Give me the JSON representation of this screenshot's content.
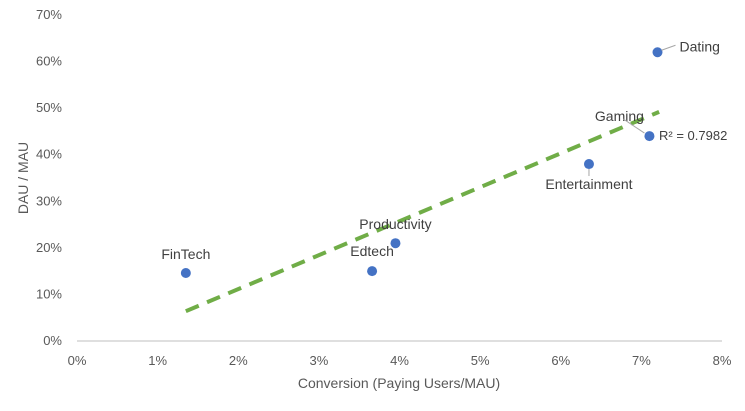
{
  "chart_data": {
    "type": "scatter",
    "title": "",
    "xlabel": "Conversion (Paying Users/MAU)",
    "ylabel": "DAU / MAU",
    "xlim": [
      0,
      0.08
    ],
    "ylim": [
      0,
      0.7
    ],
    "x_ticks": [
      0,
      0.01,
      0.02,
      0.03,
      0.04,
      0.05,
      0.06,
      0.07,
      0.08
    ],
    "x_tick_labels": [
      "0%",
      "1%",
      "2%",
      "3%",
      "4%",
      "5%",
      "6%",
      "7%",
      "8%"
    ],
    "y_ticks": [
      0,
      0.1,
      0.2,
      0.3,
      0.4,
      0.5,
      0.6,
      0.7
    ],
    "y_tick_labels": [
      "0%",
      "10%",
      "20%",
      "30%",
      "40%",
      "50%",
      "60%",
      "70%"
    ],
    "grid": false,
    "legend": false,
    "points": [
      {
        "label": "FinTech",
        "x": 0.0135,
        "y": 0.146
      },
      {
        "label": "Edtech",
        "x": 0.0366,
        "y": 0.15
      },
      {
        "label": "Productivity",
        "x": 0.0395,
        "y": 0.21
      },
      {
        "label": "Entertainment",
        "x": 0.0635,
        "y": 0.38
      },
      {
        "label": "Gaming",
        "x": 0.071,
        "y": 0.44
      },
      {
        "label": "Dating",
        "x": 0.072,
        "y": 0.62
      }
    ],
    "trendline": {
      "type": "linear",
      "x": [
        0.0135,
        0.0722
      ],
      "y": [
        0.064,
        0.492
      ],
      "r2_label": "R² = 0.7982"
    },
    "colors": {
      "points": "#4472C4",
      "trendline": "#70AD47",
      "axis": "#BFBFBF",
      "text": "#595959"
    }
  }
}
